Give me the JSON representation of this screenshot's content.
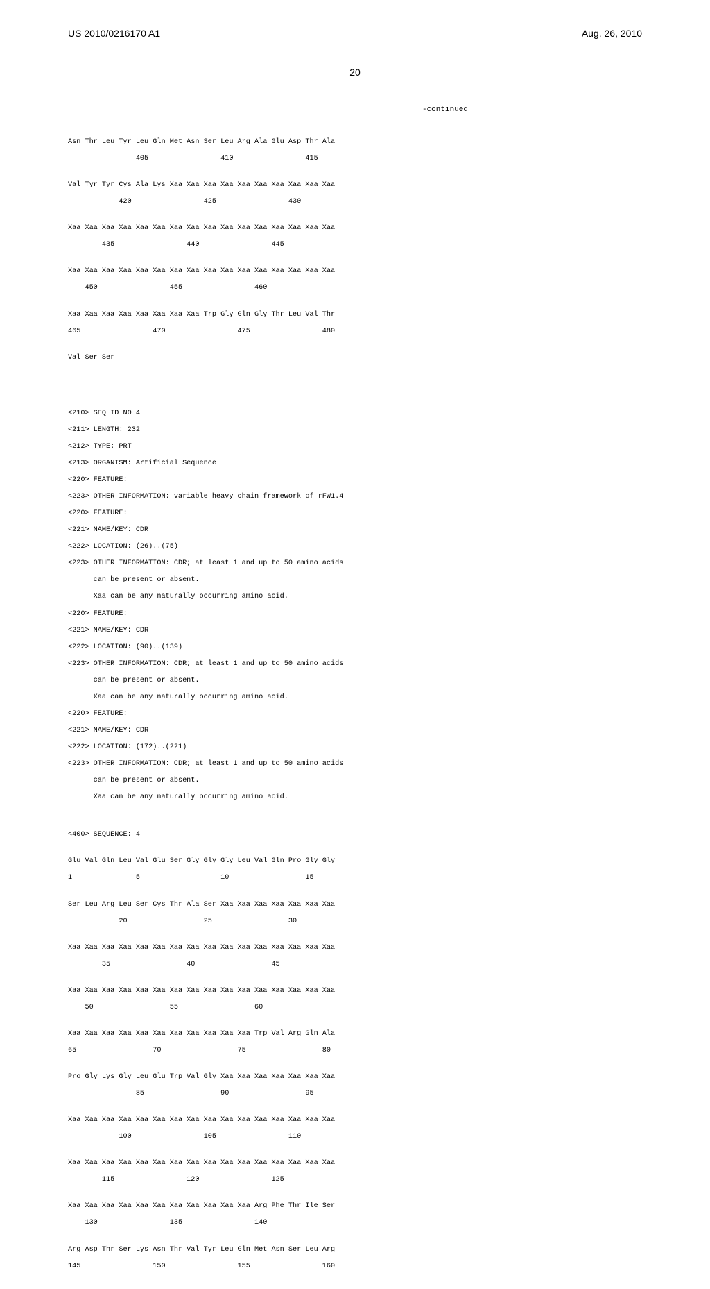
{
  "header": {
    "pub_number": "US 2010/0216170 A1",
    "pub_date": "Aug. 26, 2010"
  },
  "page_number": "20",
  "continued_label": "-continued",
  "font": {
    "mono_family": "Courier New",
    "sans_family": "Arial",
    "header_size": 14,
    "body_size": 10.2,
    "text_color": "#000000",
    "background_color": "#ffffff"
  },
  "sequence_blocks_top": [
    {
      "seq": "Asn Thr Leu Tyr Leu Gln Met Asn Ser Leu Arg Ala Glu Asp Thr Ala",
      "num": "                405                 410                 415"
    },
    {
      "seq": "Val Tyr Tyr Cys Ala Lys Xaa Xaa Xaa Xaa Xaa Xaa Xaa Xaa Xaa Xaa",
      "num": "            420                 425                 430"
    },
    {
      "seq": "Xaa Xaa Xaa Xaa Xaa Xaa Xaa Xaa Xaa Xaa Xaa Xaa Xaa Xaa Xaa Xaa",
      "num": "        435                 440                 445"
    },
    {
      "seq": "Xaa Xaa Xaa Xaa Xaa Xaa Xaa Xaa Xaa Xaa Xaa Xaa Xaa Xaa Xaa Xaa",
      "num": "    450                 455                 460"
    },
    {
      "seq": "Xaa Xaa Xaa Xaa Xaa Xaa Xaa Xaa Trp Gly Gln Gly Thr Leu Val Thr",
      "num": "465                 470                 475                 480"
    },
    {
      "seq": "Val Ser Ser",
      "num": ""
    }
  ],
  "meta": [
    "<210> SEQ ID NO 4",
    "<211> LENGTH: 232",
    "<212> TYPE: PRT",
    "<213> ORGANISM: Artificial Sequence",
    "<220> FEATURE:",
    "<223> OTHER INFORMATION: variable heavy chain framework of rFW1.4",
    "<220> FEATURE:",
    "<221> NAME/KEY: CDR",
    "<222> LOCATION: (26)..(75)",
    "<223> OTHER INFORMATION: CDR; at least 1 and up to 50 amino acids",
    "      can be present or absent.",
    "      Xaa can be any naturally occurring amino acid.",
    "<220> FEATURE:",
    "<221> NAME/KEY: CDR",
    "<222> LOCATION: (90)..(139)",
    "<223> OTHER INFORMATION: CDR; at least 1 and up to 50 amino acids",
    "      can be present or absent.",
    "      Xaa can be any naturally occurring amino acid.",
    "<220> FEATURE:",
    "<221> NAME/KEY: CDR",
    "<222> LOCATION: (172)..(221)",
    "<223> OTHER INFORMATION: CDR; at least 1 and up to 50 amino acids",
    "      can be present or absent.",
    "      Xaa can be any naturally occurring amino acid."
  ],
  "sequence_tag": "<400> SEQUENCE: 4",
  "sequence_blocks_bottom": [
    {
      "seq": "Glu Val Gln Leu Val Glu Ser Gly Gly Gly Leu Val Gln Pro Gly Gly",
      "num": "1               5                   10                  15"
    },
    {
      "seq": "Ser Leu Arg Leu Ser Cys Thr Ala Ser Xaa Xaa Xaa Xaa Xaa Xaa Xaa",
      "num": "            20                  25                  30"
    },
    {
      "seq": "Xaa Xaa Xaa Xaa Xaa Xaa Xaa Xaa Xaa Xaa Xaa Xaa Xaa Xaa Xaa Xaa",
      "num": "        35                  40                  45"
    },
    {
      "seq": "Xaa Xaa Xaa Xaa Xaa Xaa Xaa Xaa Xaa Xaa Xaa Xaa Xaa Xaa Xaa Xaa",
      "num": "    50                  55                  60"
    },
    {
      "seq": "Xaa Xaa Xaa Xaa Xaa Xaa Xaa Xaa Xaa Xaa Xaa Trp Val Arg Gln Ala",
      "num": "65                  70                  75                  80"
    },
    {
      "seq": "Pro Gly Lys Gly Leu Glu Trp Val Gly Xaa Xaa Xaa Xaa Xaa Xaa Xaa",
      "num": "                85                  90                  95"
    },
    {
      "seq": "Xaa Xaa Xaa Xaa Xaa Xaa Xaa Xaa Xaa Xaa Xaa Xaa Xaa Xaa Xaa Xaa",
      "num": "            100                 105                 110"
    },
    {
      "seq": "Xaa Xaa Xaa Xaa Xaa Xaa Xaa Xaa Xaa Xaa Xaa Xaa Xaa Xaa Xaa Xaa",
      "num": "        115                 120                 125"
    },
    {
      "seq": "Xaa Xaa Xaa Xaa Xaa Xaa Xaa Xaa Xaa Xaa Xaa Arg Phe Thr Ile Ser",
      "num": "    130                 135                 140"
    },
    {
      "seq": "Arg Asp Thr Ser Lys Asn Thr Val Tyr Leu Gln Met Asn Ser Leu Arg",
      "num": "145                 150                 155                 160"
    }
  ]
}
